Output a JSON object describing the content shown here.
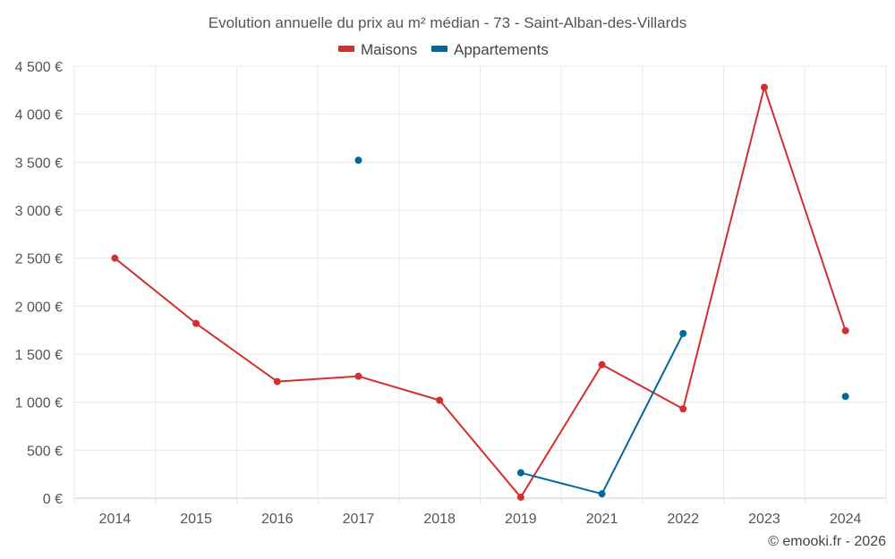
{
  "chart_data": {
    "type": "line",
    "title": "Evolution annuelle du prix au m² médian - 73 - Saint-Alban-des-Villards",
    "categories": [
      "2014",
      "2015",
      "2016",
      "2017",
      "2018",
      "2019",
      "2021",
      "2022",
      "2023",
      "2024"
    ],
    "series": [
      {
        "name": "Maisons",
        "color": "#d32f2f",
        "values": [
          2500,
          1820,
          1215,
          1270,
          1020,
          10,
          1390,
          930,
          4280,
          1745
        ]
      },
      {
        "name": "Appartements",
        "color": "#01689b",
        "values": [
          null,
          null,
          null,
          3520,
          null,
          265,
          45,
          1715,
          null,
          1060
        ]
      }
    ],
    "yticks": [
      "0 €",
      "500 €",
      "1 000 €",
      "1 500 €",
      "2 000 €",
      "2 500 €",
      "3 000 €",
      "3 500 €",
      "4 000 €",
      "4 500 €"
    ],
    "ylim": [
      0,
      4500
    ],
    "xlabel": "",
    "ylabel": "",
    "grid": true,
    "legend": "top-center"
  },
  "credit": "© emooki.fr - 2026"
}
